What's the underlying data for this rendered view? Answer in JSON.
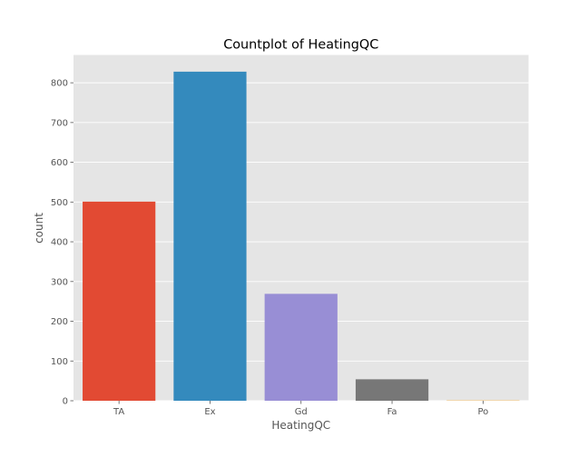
{
  "chart_data": {
    "type": "bar",
    "title": "Countplot of HeatingQC",
    "xlabel": "HeatingQC",
    "ylabel": "count",
    "categories": [
      "TA",
      "Ex",
      "Gd",
      "Fa",
      "Po"
    ],
    "values": [
      501,
      828,
      269,
      54,
      1
    ],
    "colors": [
      "#e24a33",
      "#348abd",
      "#988ed5",
      "#777777",
      "#fbc15e"
    ],
    "ylim": [
      0,
      870
    ],
    "yticks": [
      0,
      100,
      200,
      300,
      400,
      500,
      600,
      700,
      800
    ],
    "grid": true,
    "legend": "none",
    "style": {
      "background": "#e5e5e5",
      "grid_color": "#ffffff"
    }
  }
}
